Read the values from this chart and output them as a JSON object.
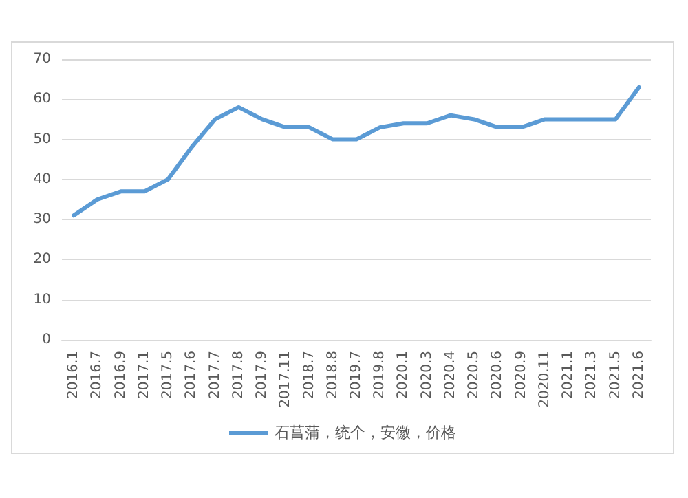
{
  "chart_data": {
    "type": "line",
    "categories": [
      "2016.1",
      "2016.7",
      "2016.9",
      "2017.1",
      "2017.5",
      "2017.6",
      "2017.7",
      "2017.8",
      "2017.9",
      "2017.11",
      "2018.7",
      "2018.8",
      "2019.7",
      "2019.8",
      "2020.1",
      "2020.3",
      "2020.4",
      "2020.5",
      "2020.6",
      "2020.9",
      "2020.11",
      "2021.1",
      "2021.3",
      "2021.5",
      "2021.6"
    ],
    "series": [
      {
        "name": "石菖蒲，统个，安徽，价格",
        "color": "#5b9bd5",
        "values": [
          31,
          35,
          37,
          37,
          40,
          48,
          55,
          58,
          55,
          53,
          53,
          50,
          50,
          53,
          54,
          54,
          56,
          55,
          53,
          53,
          55,
          55,
          55,
          55,
          63
        ]
      }
    ],
    "ylim": [
      0,
      70
    ],
    "yticks": [
      0,
      10,
      20,
      30,
      40,
      50,
      60,
      70
    ],
    "grid": "y",
    "legend": "bottom",
    "marker": "none",
    "line_style": "solid"
  }
}
